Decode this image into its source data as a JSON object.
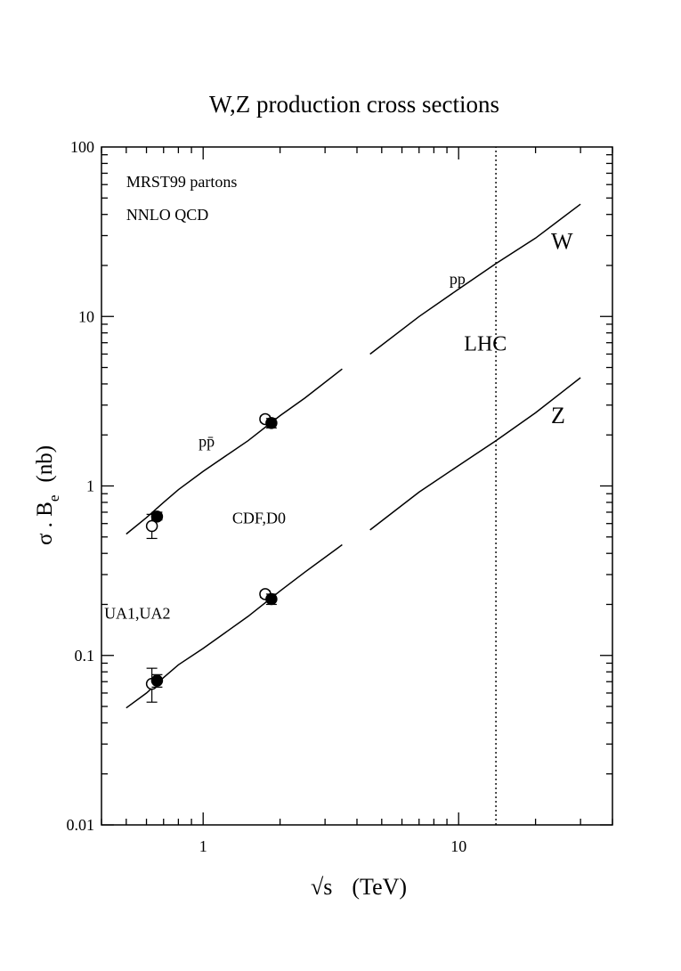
{
  "chart_data": {
    "type": "line",
    "title": "W,Z production cross sections",
    "xlabel": "√s",
    "xlabel_units": "(TeV)",
    "ylabel_base": "σ . B",
    "ylabel_sub": "e",
    "ylabel_units": "(nb)",
    "xscale": "log",
    "yscale": "log",
    "xlim": [
      0.4,
      40
    ],
    "ylim": [
      0.01,
      100
    ],
    "x_tick_labels": [
      {
        "value": 1,
        "label": "1"
      },
      {
        "value": 10,
        "label": "10"
      }
    ],
    "y_tick_labels": [
      {
        "value": 100,
        "label": "100"
      },
      {
        "value": 10,
        "label": "10"
      },
      {
        "value": 1,
        "label": "1"
      },
      {
        "value": 0.1,
        "label": "0.1"
      },
      {
        "value": 0.01,
        "label": "0.01"
      }
    ],
    "series": [
      {
        "name": "W p-pbar",
        "style": "solid",
        "x": [
          0.5,
          0.6,
          0.7,
          0.8,
          1.0,
          1.5,
          2.0,
          2.5,
          3.5
        ],
        "y": [
          0.52,
          0.65,
          0.8,
          0.95,
          1.22,
          1.85,
          2.6,
          3.3,
          4.9
        ]
      },
      {
        "name": "W pp",
        "style": "solid",
        "x": [
          4.5,
          7,
          10,
          14,
          20,
          30
        ],
        "y": [
          6.0,
          10.0,
          14.5,
          20.5,
          29.0,
          46.0
        ]
      },
      {
        "name": "Z p-pbar",
        "style": "solid",
        "x": [
          0.5,
          0.6,
          0.7,
          0.8,
          1.0,
          1.5,
          2.0,
          2.5,
          3.5
        ],
        "y": [
          0.049,
          0.06,
          0.074,
          0.088,
          0.11,
          0.17,
          0.24,
          0.31,
          0.45
        ]
      },
      {
        "name": "Z pp",
        "style": "solid",
        "x": [
          4.5,
          7,
          10,
          14,
          20,
          30
        ],
        "y": [
          0.55,
          0.92,
          1.32,
          1.85,
          2.7,
          4.35
        ]
      },
      {
        "name": "LHC",
        "style": "dotted",
        "x": [
          14,
          14
        ],
        "y": [
          0.01,
          100
        ]
      }
    ],
    "points": [
      {
        "group": "UA1,UA2",
        "boson": "W",
        "filled": false,
        "x": 0.63,
        "y": 0.58,
        "yerr_low": 0.49,
        "yerr_high": 0.68
      },
      {
        "group": "UA1,UA2",
        "boson": "W",
        "filled": true,
        "x": 0.66,
        "y": 0.66,
        "yerr_low": 0.63,
        "yerr_high": 0.7
      },
      {
        "group": "CDF,D0",
        "boson": "W",
        "filled": false,
        "x": 1.75,
        "y": 2.48,
        "yerr_low": 2.38,
        "yerr_high": 2.58
      },
      {
        "group": "CDF,D0",
        "boson": "W",
        "filled": true,
        "x": 1.85,
        "y": 2.35,
        "yerr_low": 2.2,
        "yerr_high": 2.5
      },
      {
        "group": "UA1,UA2",
        "boson": "Z",
        "filled": false,
        "x": 0.63,
        "y": 0.068,
        "yerr_low": 0.053,
        "yerr_high": 0.084
      },
      {
        "group": "UA1,UA2",
        "boson": "Z",
        "filled": true,
        "x": 0.66,
        "y": 0.071,
        "yerr_low": 0.065,
        "yerr_high": 0.077
      },
      {
        "group": "CDF,D0",
        "boson": "Z",
        "filled": false,
        "x": 1.75,
        "y": 0.23,
        "yerr_low": 0.22,
        "yerr_high": 0.24
      },
      {
        "group": "CDF,D0",
        "boson": "Z",
        "filled": true,
        "x": 1.85,
        "y": 0.215,
        "yerr_low": 0.2,
        "yerr_high": 0.23
      }
    ],
    "annotations": [
      {
        "id": "mrst",
        "text": "MRST99 partons",
        "x": 0.5,
        "y": 58,
        "size": 18
      },
      {
        "id": "nnlo",
        "text": "NNLO QCD",
        "x": 0.5,
        "y": 37,
        "size": 18
      },
      {
        "id": "pp",
        "text": "pp",
        "x": 9.2,
        "y": 15.5,
        "size": 18
      },
      {
        "id": "W",
        "text": "W",
        "x": 23,
        "y": 25,
        "size": 26
      },
      {
        "id": "LHC",
        "text": "LHC",
        "x": 10.5,
        "y": 6.3,
        "size": 24
      },
      {
        "id": "ppbar",
        "text": "pp̄",
        "x": 0.96,
        "y": 1.7,
        "size": 18
      },
      {
        "id": "cdfd0",
        "text": "CDF,D0",
        "x": 1.3,
        "y": 0.6,
        "size": 18
      },
      {
        "id": "Z",
        "text": "Z",
        "x": 23,
        "y": 2.35,
        "size": 26
      },
      {
        "id": "ua",
        "text": "UA1,UA2",
        "x": 0.41,
        "y": 0.165,
        "size": 18
      }
    ]
  }
}
